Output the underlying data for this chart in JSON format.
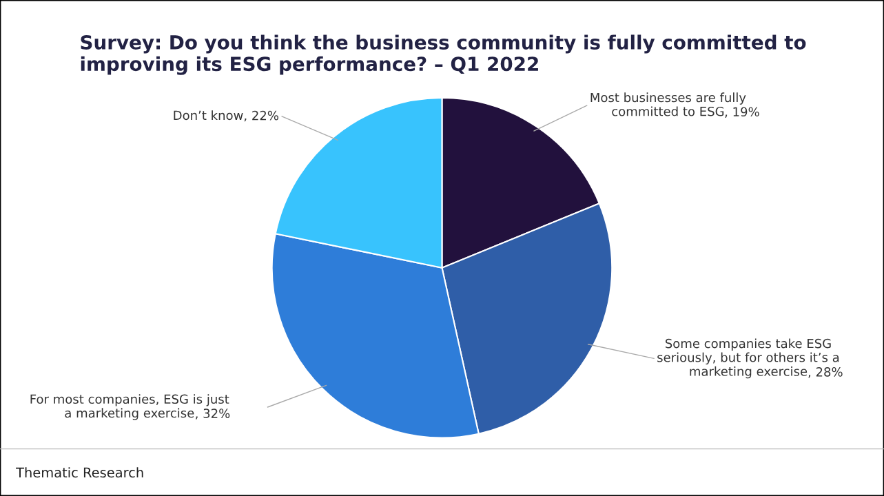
{
  "chart_data": {
    "type": "pie",
    "title": "Survey: Do you think the business community is fully committed to improving its ESG performance? – Q1 2022",
    "categories": [
      "Most businesses are fully\ncommitted to ESG",
      "Some companies take ESG\nseriously, but for others it’s a\nmarketing exercise",
      "For most companies, ESG is just\na marketing exercise",
      "Don’t know"
    ],
    "values": [
      19,
      28,
      32,
      22
    ],
    "colors": [
      "#22113d",
      "#2f5ea8",
      "#2e7dd9",
      "#38c3fd"
    ],
    "value_labels": [
      ", 19%",
      ", 28%",
      ", 32%",
      ", 22%"
    ],
    "annotations": [
      "Thematic Research"
    ]
  }
}
